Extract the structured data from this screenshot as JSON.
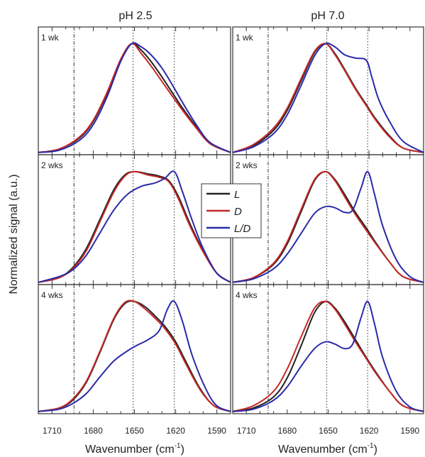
{
  "chart_data": {
    "type": "line",
    "ylabel": "Normalized signal (a.u.)",
    "xlabel": "Wavenumber (cm",
    "xlabel_sup": "-1",
    "xlabel_tail": ")",
    "xlim": [
      1720,
      1580
    ],
    "ylim": [
      0,
      1.15
    ],
    "xticks": [
      1710,
      1680,
      1650,
      1620,
      1590
    ],
    "reference_lines": [
      1694,
      1651,
      1621
    ],
    "legend": {
      "placement": "center",
      "entries": [
        {
          "label": "L",
          "color": "#222222"
        },
        {
          "label": "D",
          "color": "#c62828"
        },
        {
          "label": "L/D",
          "color": "#2a2aa8"
        }
      ]
    },
    "columns": [
      "pH 2.5",
      "pH 7.0"
    ],
    "rows": [
      "1 wk",
      "2 wks",
      "4 wks"
    ],
    "panels": [
      {
        "column": 0,
        "row": 0,
        "series": [
          {
            "name": "L",
            "color": "#222222",
            "x": [
              1720,
              1705,
              1690,
              1680,
              1670,
              1660,
              1652,
              1645,
              1638,
              1630,
              1622,
              1615,
              1605,
              1595,
              1580
            ],
            "y": [
              0.02,
              0.05,
              0.15,
              0.3,
              0.55,
              0.85,
              1.0,
              0.94,
              0.84,
              0.7,
              0.55,
              0.42,
              0.25,
              0.1,
              0.02
            ]
          },
          {
            "name": "D",
            "color": "#c62828",
            "x": [
              1720,
              1705,
              1690,
              1680,
              1670,
              1660,
              1652,
              1645,
              1638,
              1630,
              1622,
              1615,
              1605,
              1595,
              1580
            ],
            "y": [
              0.02,
              0.05,
              0.16,
              0.31,
              0.56,
              0.86,
              1.0,
              0.91,
              0.8,
              0.66,
              0.52,
              0.4,
              0.24,
              0.1,
              0.02
            ]
          },
          {
            "name": "L/D",
            "color": "#2a2aa8",
            "x": [
              1720,
              1705,
              1690,
              1680,
              1670,
              1660,
              1652,
              1645,
              1638,
              1630,
              1622,
              1615,
              1605,
              1595,
              1580
            ],
            "y": [
              0.02,
              0.04,
              0.13,
              0.27,
              0.52,
              0.84,
              1.0,
              0.97,
              0.9,
              0.78,
              0.62,
              0.47,
              0.27,
              0.11,
              0.02
            ]
          }
        ]
      },
      {
        "column": 1,
        "row": 0,
        "series": [
          {
            "name": "L",
            "color": "#222222",
            "x": [
              1720,
              1705,
              1690,
              1680,
              1670,
              1660,
              1652,
              1645,
              1638,
              1630,
              1622,
              1615,
              1605,
              1595,
              1580
            ],
            "y": [
              0.02,
              0.08,
              0.22,
              0.4,
              0.66,
              0.92,
              1.0,
              0.91,
              0.77,
              0.6,
              0.45,
              0.32,
              0.17,
              0.06,
              0.02
            ]
          },
          {
            "name": "D",
            "color": "#c62828",
            "x": [
              1720,
              1705,
              1690,
              1680,
              1670,
              1660,
              1652,
              1645,
              1638,
              1630,
              1622,
              1615,
              1605,
              1595,
              1580
            ],
            "y": [
              0.02,
              0.09,
              0.24,
              0.42,
              0.68,
              0.93,
              1.0,
              0.9,
              0.76,
              0.59,
              0.44,
              0.31,
              0.16,
              0.06,
              0.02
            ]
          },
          {
            "name": "L/D",
            "color": "#2a2aa8",
            "x": [
              1720,
              1705,
              1690,
              1680,
              1670,
              1660,
              1652,
              1645,
              1638,
              1630,
              1622,
              1618,
              1613,
              1605,
              1595,
              1580
            ],
            "y": [
              0.02,
              0.07,
              0.19,
              0.36,
              0.62,
              0.89,
              1.0,
              0.97,
              0.9,
              0.87,
              0.85,
              0.7,
              0.5,
              0.3,
              0.12,
              0.02
            ]
          }
        ]
      },
      {
        "column": 0,
        "row": 1,
        "series": [
          {
            "name": "L",
            "color": "#222222",
            "x": [
              1720,
              1705,
              1695,
              1685,
              1675,
              1665,
              1657,
              1650,
              1640,
              1632,
              1625,
              1618,
              1610,
              1600,
              1590,
              1580
            ],
            "y": [
              0.02,
              0.06,
              0.15,
              0.32,
              0.58,
              0.84,
              0.97,
              1.0,
              0.98,
              0.96,
              0.92,
              0.78,
              0.55,
              0.3,
              0.1,
              0.02
            ]
          },
          {
            "name": "D",
            "color": "#c62828",
            "x": [
              1720,
              1705,
              1695,
              1685,
              1675,
              1665,
              1657,
              1650,
              1640,
              1632,
              1625,
              1618,
              1610,
              1600,
              1590,
              1580
            ],
            "y": [
              0.02,
              0.06,
              0.14,
              0.3,
              0.56,
              0.82,
              0.96,
              1.0,
              0.97,
              0.95,
              0.91,
              0.76,
              0.53,
              0.29,
              0.1,
              0.02
            ]
          },
          {
            "name": "L/D",
            "color": "#2a2aa8",
            "x": [
              1720,
              1705,
              1695,
              1685,
              1675,
              1665,
              1655,
              1645,
              1635,
              1628,
              1621,
              1615,
              1608,
              1600,
              1590,
              1580
            ],
            "y": [
              0.02,
              0.07,
              0.13,
              0.26,
              0.46,
              0.66,
              0.8,
              0.87,
              0.9,
              0.94,
              1.0,
              0.82,
              0.57,
              0.32,
              0.1,
              0.02
            ]
          }
        ]
      },
      {
        "column": 1,
        "row": 1,
        "series": [
          {
            "name": "L",
            "color": "#222222",
            "x": [
              1720,
              1705,
              1690,
              1680,
              1670,
              1660,
              1652,
              1645,
              1638,
              1630,
              1622,
              1615,
              1605,
              1595,
              1580
            ],
            "y": [
              0.02,
              0.06,
              0.18,
              0.36,
              0.64,
              0.92,
              1.0,
              0.93,
              0.8,
              0.64,
              0.5,
              0.37,
              0.2,
              0.07,
              0.02
            ]
          },
          {
            "name": "D",
            "color": "#c62828",
            "x": [
              1720,
              1705,
              1690,
              1680,
              1670,
              1660,
              1652,
              1645,
              1638,
              1630,
              1622,
              1615,
              1605,
              1595,
              1580
            ],
            "y": [
              0.02,
              0.06,
              0.19,
              0.38,
              0.66,
              0.93,
              1.0,
              0.92,
              0.78,
              0.62,
              0.48,
              0.36,
              0.2,
              0.07,
              0.02
            ]
          },
          {
            "name": "L/D",
            "color": "#2a2aa8",
            "x": [
              1720,
              1705,
              1690,
              1680,
              1670,
              1660,
              1652,
              1645,
              1638,
              1632,
              1626,
              1621,
              1616,
              1610,
              1600,
              1590,
              1580
            ],
            "y": [
              0.02,
              0.05,
              0.14,
              0.27,
              0.45,
              0.63,
              0.69,
              0.68,
              0.64,
              0.66,
              0.85,
              1.0,
              0.8,
              0.52,
              0.22,
              0.07,
              0.02
            ]
          }
        ]
      },
      {
        "column": 0,
        "row": 2,
        "series": [
          {
            "name": "L",
            "color": "#222222",
            "x": [
              1720,
              1705,
              1695,
              1685,
              1675,
              1665,
              1657,
              1650,
              1642,
              1635,
              1628,
              1620,
              1612,
              1602,
              1592,
              1580
            ],
            "y": [
              0.02,
              0.05,
              0.12,
              0.28,
              0.55,
              0.84,
              0.98,
              1.0,
              0.95,
              0.87,
              0.78,
              0.64,
              0.45,
              0.22,
              0.07,
              0.02
            ]
          },
          {
            "name": "D",
            "color": "#c62828",
            "x": [
              1720,
              1705,
              1695,
              1685,
              1675,
              1665,
              1657,
              1650,
              1642,
              1635,
              1628,
              1620,
              1612,
              1602,
              1592,
              1580
            ],
            "y": [
              0.02,
              0.05,
              0.13,
              0.29,
              0.56,
              0.85,
              0.99,
              1.0,
              0.93,
              0.85,
              0.76,
              0.62,
              0.43,
              0.21,
              0.07,
              0.02
            ]
          },
          {
            "name": "L/D",
            "color": "#2a2aa8",
            "x": [
              1720,
              1705,
              1695,
              1685,
              1675,
              1665,
              1655,
              1648,
              1640,
              1632,
              1626,
              1621,
              1615,
              1608,
              1598,
              1590,
              1580
            ],
            "y": [
              0.02,
              0.04,
              0.09,
              0.18,
              0.33,
              0.47,
              0.56,
              0.61,
              0.66,
              0.74,
              0.93,
              1.0,
              0.82,
              0.52,
              0.22,
              0.07,
              0.02
            ]
          }
        ]
      },
      {
        "column": 1,
        "row": 2,
        "series": [
          {
            "name": "L",
            "color": "#222222",
            "x": [
              1720,
              1705,
              1690,
              1680,
              1670,
              1660,
              1652,
              1645,
              1638,
              1630,
              1622,
              1615,
              1605,
              1595,
              1580
            ],
            "y": [
              0.02,
              0.05,
              0.15,
              0.32,
              0.6,
              0.9,
              1.0,
              0.94,
              0.82,
              0.66,
              0.5,
              0.37,
              0.2,
              0.07,
              0.02
            ]
          },
          {
            "name": "D",
            "color": "#c62828",
            "x": [
              1720,
              1705,
              1690,
              1680,
              1670,
              1660,
              1652,
              1645,
              1638,
              1630,
              1622,
              1615,
              1605,
              1595,
              1580
            ],
            "y": [
              0.02,
              0.07,
              0.2,
              0.4,
              0.68,
              0.94,
              1.0,
              0.93,
              0.8,
              0.64,
              0.49,
              0.36,
              0.2,
              0.07,
              0.02
            ]
          },
          {
            "name": "L/D",
            "color": "#2a2aa8",
            "x": [
              1720,
              1705,
              1690,
              1680,
              1670,
              1660,
              1652,
              1645,
              1638,
              1632,
              1626,
              1621,
              1616,
              1610,
              1600,
              1590,
              1580
            ],
            "y": [
              0.02,
              0.04,
              0.12,
              0.24,
              0.42,
              0.58,
              0.64,
              0.62,
              0.58,
              0.62,
              0.85,
              1.0,
              0.8,
              0.5,
              0.2,
              0.06,
              0.02
            ]
          }
        ]
      }
    ]
  }
}
